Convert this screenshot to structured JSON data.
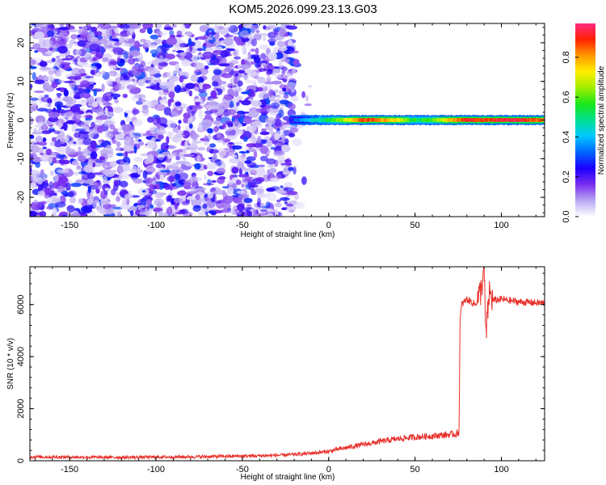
{
  "chart_data": [
    {
      "type": "heatmap",
      "title": "KOM5.2026.099.23.13.G03",
      "xlabel": "Height of straight line (km)",
      "ylabel": "Frequency (Hz)",
      "xlim": [
        -173,
        125
      ],
      "ylim": [
        -25,
        25
      ],
      "x_ticks": [
        -150,
        -100,
        -50,
        0,
        50,
        100
      ],
      "y_ticks": [
        -20,
        -10,
        0,
        10,
        20
      ],
      "colorbar": {
        "label": "Normalized spectral amplitude",
        "range": [
          0,
          0.97
        ],
        "ticks": [
          "0.0",
          "0.2",
          "0.4",
          "0.6",
          "0.8"
        ],
        "colors": [
          "#ffffff",
          "#b9a7f2",
          "#7a2df0",
          "#1a00ff",
          "#0066ff",
          "#00c8ff",
          "#00e090",
          "#19e619",
          "#a0ee00",
          "#ffee00",
          "#ff9900",
          "#ff2200",
          "#ff2a80"
        ]
      },
      "noise_region_x": [
        -173,
        -20
      ],
      "signal_line": {
        "frequency_hz": 0,
        "x_start": -22,
        "x_end": 125,
        "amplitude_profile": [
          {
            "x": -20,
            "v": 0.3
          },
          {
            "x": -10,
            "v": 0.45
          },
          {
            "x": 0,
            "v": 0.55
          },
          {
            "x": 10,
            "v": 0.7
          },
          {
            "x": 20,
            "v": 0.9
          },
          {
            "x": 30,
            "v": 0.85
          },
          {
            "x": 40,
            "v": 0.75
          },
          {
            "x": 50,
            "v": 0.55
          },
          {
            "x": 60,
            "v": 0.6
          },
          {
            "x": 70,
            "v": 0.8
          },
          {
            "x": 80,
            "v": 0.95
          },
          {
            "x": 90,
            "v": 0.9
          },
          {
            "x": 100,
            "v": 0.95
          },
          {
            "x": 110,
            "v": 0.95
          },
          {
            "x": 125,
            "v": 0.85
          }
        ]
      }
    },
    {
      "type": "line",
      "title": "",
      "xlabel": "Height of straight line (km)",
      "ylabel": "SNR (10 * v/v)",
      "xlim": [
        -173,
        125
      ],
      "ylim": [
        0,
        7450
      ],
      "x_ticks": [
        -150,
        -100,
        -50,
        0,
        50,
        100
      ],
      "y_ticks": [
        0,
        2000,
        4000,
        6000
      ],
      "color": "#e8302a",
      "series": [
        {
          "name": "SNR",
          "x": [
            -173,
            -150,
            -120,
            -100,
            -80,
            -60,
            -40,
            -25,
            -15,
            -5,
            0,
            5,
            10,
            15,
            20,
            25,
            30,
            35,
            40,
            45,
            50,
            55,
            60,
            65,
            70,
            74,
            75.5,
            76,
            77,
            80,
            85,
            88,
            90,
            91,
            93,
            95,
            100,
            110,
            125
          ],
          "y": [
            150,
            140,
            130,
            140,
            150,
            170,
            190,
            220,
            260,
            320,
            360,
            430,
            500,
            560,
            620,
            680,
            740,
            790,
            840,
            880,
            910,
            930,
            950,
            980,
            1000,
            1030,
            1100,
            5300,
            6000,
            6200,
            6000,
            6500,
            7300,
            4700,
            6500,
            6150,
            6200,
            6100,
            6050
          ]
        }
      ]
    }
  ]
}
